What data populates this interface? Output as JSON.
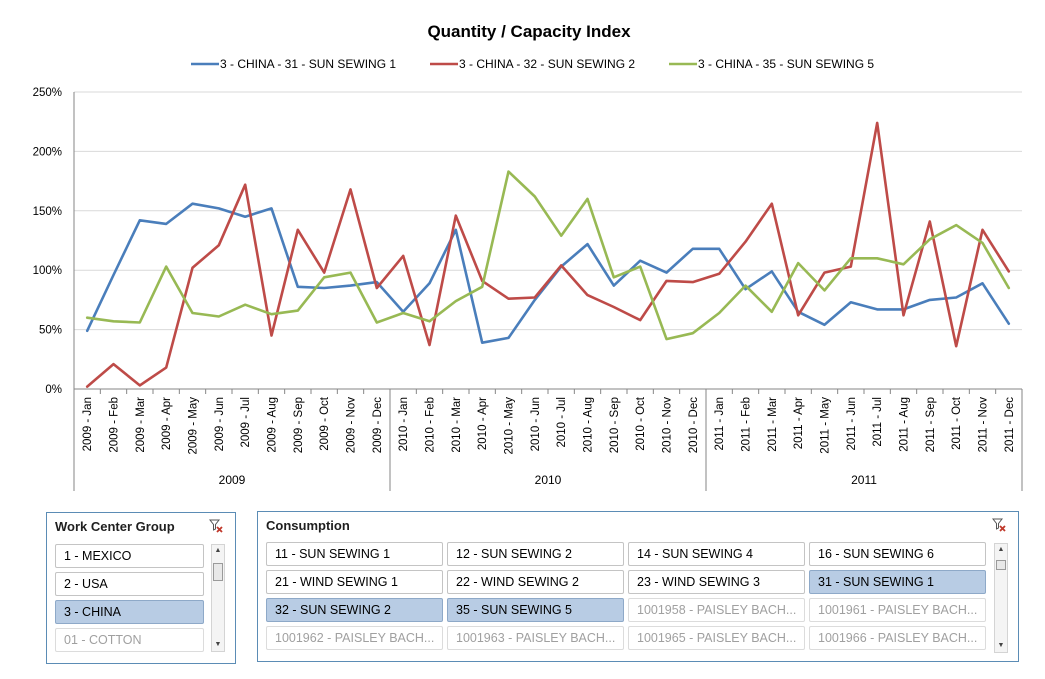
{
  "chart_data": {
    "type": "line",
    "title": "Quantity / Capacity Index",
    "ylim": [
      0,
      250
    ],
    "yticks": [
      0,
      50,
      100,
      150,
      200,
      250
    ],
    "ytick_labels": [
      "0%",
      "50%",
      "100%",
      "150%",
      "200%",
      "250%"
    ],
    "categories": [
      "2009 - Jan",
      "2009 - Feb",
      "2009 - Mar",
      "2009 - Apr",
      "2009 - May",
      "2009 - Jun",
      "2009 - Jul",
      "2009 - Aug",
      "2009 - Sep",
      "2009 - Oct",
      "2009 - Nov",
      "2009 - Dec",
      "2010 - Jan",
      "2010 - Feb",
      "2010 - Mar",
      "2010 - Apr",
      "2010 - May",
      "2010 - Jun",
      "2010 - Jul",
      "2010 - Aug",
      "2010 - Sep",
      "2010 - Oct",
      "2010 - Nov",
      "2010 - Dec",
      "2011 - Jan",
      "2011 - Feb",
      "2011 - Mar",
      "2011 - Apr",
      "2011 - May",
      "2011 - Jun",
      "2011 - Jul",
      "2011 - Aug",
      "2011 - Sep",
      "2011 - Oct",
      "2011 - Nov",
      "2011 - Dec"
    ],
    "groups": [
      "2009",
      "2010",
      "2011"
    ],
    "series": [
      {
        "name": "3 - CHINA - 31 - SUN SEWING 1",
        "color": "#4a7ebb",
        "values": [
          49,
          96,
          142,
          139,
          156,
          152,
          145,
          152,
          86,
          85,
          87,
          90,
          65,
          89,
          134,
          39,
          43,
          75,
          103,
          122,
          87,
          108,
          98,
          118,
          118,
          84,
          99,
          65,
          54,
          73,
          67,
          67,
          75,
          77,
          89,
          55
        ]
      },
      {
        "name": "3 - CHINA - 32 - SUN SEWING 2",
        "color": "#be4b48",
        "values": [
          2,
          21,
          3,
          18,
          102,
          121,
          172,
          45,
          134,
          98,
          168,
          85,
          112,
          37,
          146,
          91,
          76,
          77,
          104,
          79,
          69,
          58,
          91,
          90,
          97,
          124,
          156,
          62,
          98,
          103,
          224,
          62,
          141,
          36,
          134,
          99
        ]
      },
      {
        "name": "3 - CHINA - 35 - SUN SEWING 5",
        "color": "#98b954",
        "values": [
          60,
          57,
          56,
          103,
          64,
          61,
          71,
          63,
          66,
          94,
          98,
          56,
          64,
          57,
          74,
          86,
          183,
          162,
          129,
          160,
          94,
          103,
          42,
          47,
          64,
          87,
          65,
          106,
          83,
          110,
          110,
          105,
          126,
          138,
          123,
          85
        ]
      }
    ]
  },
  "slicers": {
    "work_center": {
      "title": "Work Center Group",
      "items": [
        {
          "label": "1 - MEXICO",
          "state": "normal"
        },
        {
          "label": "2 - USA",
          "state": "normal"
        },
        {
          "label": "3 - CHINA",
          "state": "selected"
        },
        {
          "label": "01 - COTTON",
          "state": "nodata"
        }
      ]
    },
    "consumption": {
      "title": "Consumption",
      "items": [
        {
          "label": "11 - SUN SEWING 1",
          "state": "normal"
        },
        {
          "label": "12 - SUN SEWING 2",
          "state": "normal"
        },
        {
          "label": "14 - SUN SEWING 4",
          "state": "normal"
        },
        {
          "label": "16 - SUN SEWING 6",
          "state": "normal"
        },
        {
          "label": "21 - WIND SEWING 1",
          "state": "normal"
        },
        {
          "label": "22 - WIND SEWING 2",
          "state": "normal"
        },
        {
          "label": "23 - WIND SEWING 3",
          "state": "normal"
        },
        {
          "label": "31 - SUN SEWING 1",
          "state": "selected"
        },
        {
          "label": "32 - SUN SEWING 2",
          "state": "selected"
        },
        {
          "label": "35 - SUN SEWING 5",
          "state": "selected"
        },
        {
          "label": "1001958 - PAISLEY BACH...",
          "state": "nodata"
        },
        {
          "label": "1001961 - PAISLEY BACH...",
          "state": "nodata"
        },
        {
          "label": "1001962 - PAISLEY BACH...",
          "state": "nodata"
        },
        {
          "label": "1001963 - PAISLEY BACH...",
          "state": "nodata"
        },
        {
          "label": "1001965 - PAISLEY BACH...",
          "state": "nodata"
        },
        {
          "label": "1001966 - PAISLEY BACH...",
          "state": "nodata"
        }
      ]
    }
  }
}
